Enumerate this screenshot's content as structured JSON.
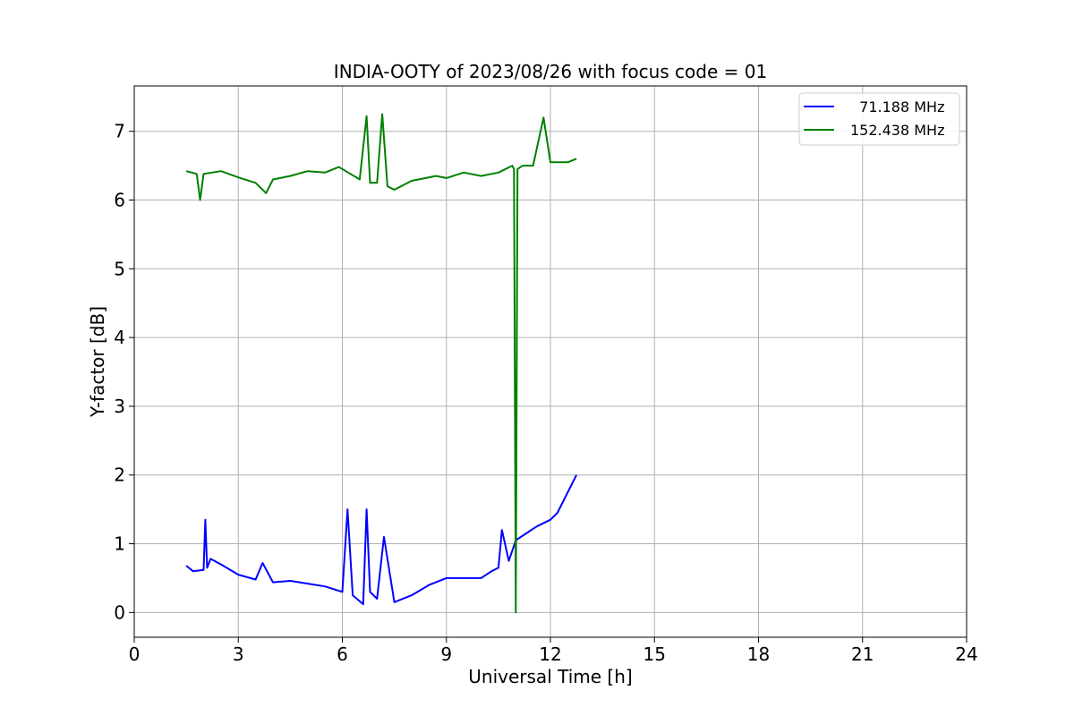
{
  "chart_data": {
    "type": "line",
    "title": "INDIA-OOTY of 2023/08/26 with focus code = 01",
    "xlabel": "Universal Time [h]",
    "ylabel": "Y-factor [dB]",
    "xlim": [
      0,
      24
    ],
    "ylim": [
      -0.36,
      7.66
    ],
    "xticks": [
      "0",
      "3",
      "6",
      "9",
      "12",
      "15",
      "18",
      "21",
      "24"
    ],
    "yticks": [
      "0",
      "1",
      "2",
      "3",
      "4",
      "5",
      "6",
      "7"
    ],
    "grid": true,
    "legend_position": "top-right",
    "series": [
      {
        "name": "  71.188 MHz",
        "color": "#0000ff",
        "x": [
          1.5,
          1.7,
          2.0,
          2.05,
          2.1,
          2.2,
          2.5,
          3.0,
          3.5,
          3.7,
          4.0,
          4.5,
          5.0,
          5.5,
          6.0,
          6.15,
          6.3,
          6.6,
          6.7,
          6.8,
          7.0,
          7.2,
          7.5,
          8.0,
          8.5,
          9.0,
          9.5,
          10.0,
          10.3,
          10.5,
          10.6,
          10.8,
          11.0,
          11.3,
          11.6,
          12.0,
          12.2,
          12.5,
          12.75
        ],
        "y": [
          0.68,
          0.6,
          0.62,
          1.35,
          0.65,
          0.78,
          0.7,
          0.55,
          0.48,
          0.72,
          0.44,
          0.46,
          0.42,
          0.38,
          0.3,
          1.5,
          0.25,
          0.12,
          1.5,
          0.3,
          0.2,
          1.1,
          0.15,
          0.25,
          0.4,
          0.5,
          0.5,
          0.5,
          0.6,
          0.65,
          1.2,
          0.75,
          1.05,
          1.15,
          1.25,
          1.35,
          1.45,
          1.75,
          2.0
        ]
      },
      {
        "name": "152.438 MHz",
        "color": "#008000",
        "x": [
          1.5,
          1.8,
          1.9,
          2.0,
          2.5,
          3.0,
          3.5,
          3.8,
          4.0,
          4.5,
          5.0,
          5.5,
          5.9,
          6.1,
          6.5,
          6.7,
          6.8,
          7.0,
          7.15,
          7.3,
          7.5,
          8.0,
          8.7,
          9.0,
          9.5,
          10.0,
          10.5,
          10.9,
          10.95,
          11.0,
          11.05,
          11.2,
          11.5,
          11.8,
          12.0,
          12.5,
          12.75
        ],
        "y": [
          6.42,
          6.38,
          6.0,
          6.38,
          6.42,
          6.33,
          6.25,
          6.1,
          6.3,
          6.35,
          6.42,
          6.4,
          6.48,
          6.42,
          6.3,
          7.22,
          6.25,
          6.25,
          7.25,
          6.2,
          6.15,
          6.28,
          6.35,
          6.32,
          6.4,
          6.35,
          6.4,
          6.5,
          6.45,
          0.0,
          6.45,
          6.5,
          6.5,
          7.2,
          6.55,
          6.55,
          6.6
        ]
      }
    ]
  }
}
